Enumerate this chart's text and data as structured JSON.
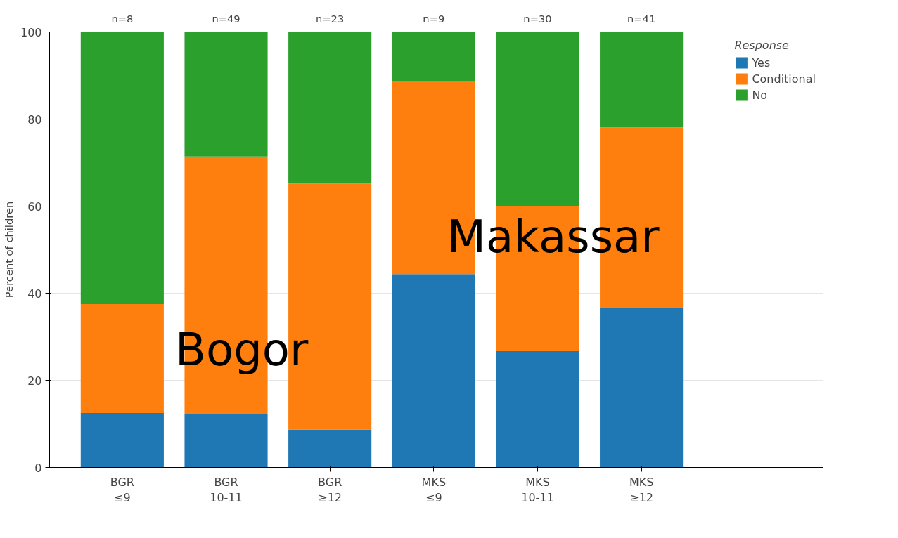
{
  "chart_data": {
    "type": "bar",
    "stacked": true,
    "ylabel": "Percent of children",
    "legend_title": "Response",
    "categories": [
      "BGR\n≤9",
      "BGR\n10-11",
      "BGR\n≥12",
      "MKS\n≤9",
      "MKS\n10-11",
      "MKS\n≥12"
    ],
    "series": [
      {
        "name": "Yes",
        "color": "#1f77b4",
        "values": [
          12.5,
          12.2,
          8.7,
          44.4,
          26.7,
          36.6
        ]
      },
      {
        "name": "Conditional",
        "color": "#ff7f0e",
        "values": [
          25.0,
          59.2,
          56.5,
          44.4,
          33.3,
          41.5
        ]
      },
      {
        "name": "No",
        "color": "#2ca02c",
        "values": [
          62.5,
          28.6,
          34.8,
          11.1,
          40.0,
          22.0
        ]
      }
    ],
    "annotations": [
      {
        "text": "n=8",
        "x": "BGR\n≤9",
        "y": 100
      },
      {
        "text": "n=49",
        "x": "BGR\n10-11",
        "y": 100
      },
      {
        "text": "n=23",
        "x": "BGR\n≥12",
        "y": 100
      },
      {
        "text": "n=9",
        "x": "MKS\n≤9",
        "y": 100
      },
      {
        "text": "n=30",
        "x": "MKS\n10-11",
        "y": 100
      },
      {
        "text": "n=41",
        "x": "MKS\n≥12",
        "y": 100
      },
      "Bogor",
      "Makassar"
    ],
    "ylim": [
      0,
      100
    ],
    "yticks": [
      0,
      20,
      40,
      60,
      80,
      100
    ],
    "grid": "y",
    "legend": "right"
  }
}
